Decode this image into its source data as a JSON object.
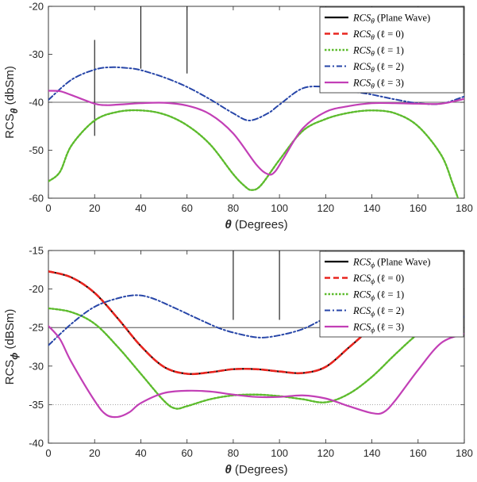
{
  "chart_data": [
    {
      "type": "line",
      "xlabel_symbol": "θ",
      "xlabel_text": " (Degrees)",
      "ylabel_main": "RCS",
      "ylabel_sub": "θ",
      "ylabel_unit": " (dbSm)",
      "xlim": [
        0,
        180
      ],
      "ylim": [
        -60,
        -20
      ],
      "xticks": [
        0,
        20,
        40,
        60,
        80,
        100,
        120,
        140,
        160,
        180
      ],
      "yticks": [
        -60,
        -50,
        -40,
        -30,
        -20
      ],
      "colors": {
        "plane": "#000000",
        "l0": "#e8251f",
        "l1": "#5cbb2c",
        "l2": "#2746a8",
        "l3": "#c23fb6"
      },
      "legend_position": "top-right",
      "legend": [
        {
          "key": "plane",
          "symbol": "RCS",
          "sub": "θ",
          "suffix": " (Plane Wave)"
        },
        {
          "key": "l0",
          "symbol": "RCS",
          "sub": "θ",
          "suffix": "    (ℓ = 0)"
        },
        {
          "key": "l1",
          "symbol": "RCS",
          "sub": "θ",
          "suffix": "    (ℓ = 1)"
        },
        {
          "key": "l2",
          "symbol": "RCS",
          "sub": "θ",
          "suffix": "    (ℓ = 2)"
        },
        {
          "key": "l3",
          "symbol": "RCS",
          "sub": "θ",
          "suffix": "    (ℓ = 3)"
        }
      ],
      "reference_lines": [
        {
          "style": "solid",
          "y": -40
        }
      ],
      "vertical_markers": [
        {
          "x": 20,
          "y_from": -47,
          "y_to": -27
        },
        {
          "x": 40,
          "y_from": -33,
          "y_to": -20
        },
        {
          "x": 60,
          "y_from": -34,
          "y_to": -20
        }
      ],
      "series": [
        {
          "key": "l1",
          "x": [
            0,
            5,
            10,
            20,
            30,
            40,
            50,
            60,
            70,
            80,
            85,
            88,
            92,
            100,
            110,
            120,
            130,
            140,
            150,
            160,
            170,
            175,
            178
          ],
          "y": [
            -56.5,
            -54.5,
            -49,
            -43.8,
            -42,
            -41.7,
            -42.5,
            -44.8,
            -48.8,
            -55,
            -57.5,
            -58.3,
            -57.3,
            -52,
            -46,
            -43.5,
            -42.2,
            -41.7,
            -42.3,
            -45,
            -51,
            -57,
            -61
          ]
        },
        {
          "key": "l2",
          "x": [
            0,
            10,
            20,
            27,
            35,
            40,
            50,
            60,
            70,
            80,
            87,
            95,
            100,
            110,
            120,
            130,
            140,
            150,
            160,
            170,
            180
          ],
          "y": [
            -39.5,
            -35.3,
            -33.2,
            -32.7,
            -32.9,
            -33.3,
            -34.8,
            -36.8,
            -39.4,
            -42.3,
            -43.8,
            -42.3,
            -40.5,
            -37.1,
            -36.8,
            -37.6,
            -38.4,
            -39.4,
            -40.2,
            -40.3,
            -38.8
          ]
        },
        {
          "key": "l3",
          "x": [
            0,
            5,
            10,
            20,
            25,
            30,
            40,
            50,
            60,
            70,
            80,
            90,
            95,
            98,
            102,
            110,
            120,
            130,
            140,
            150,
            160,
            170,
            180
          ],
          "y": [
            -37.6,
            -37.7,
            -38.5,
            -40.3,
            -40.6,
            -40.5,
            -40.2,
            -40.1,
            -40.7,
            -42.5,
            -46.5,
            -53,
            -55,
            -54.5,
            -51.5,
            -45.5,
            -42,
            -40.8,
            -40.2,
            -40.2,
            -40.3,
            -40.3,
            -39.3
          ]
        }
      ]
    },
    {
      "type": "line",
      "xlabel_symbol": "θ",
      "xlabel_text": " (Degrees)",
      "ylabel_main": "RCS",
      "ylabel_sub": "ϕ",
      "ylabel_unit": " (dBSm)",
      "xlim": [
        0,
        180
      ],
      "ylim": [
        -40,
        -15
      ],
      "xticks": [
        0,
        20,
        40,
        60,
        80,
        100,
        120,
        140,
        160,
        180
      ],
      "yticks": [
        -40,
        -35,
        -30,
        -25,
        -20,
        -15
      ],
      "colors": {
        "plane": "#000000",
        "l0": "#e8251f",
        "l1": "#5cbb2c",
        "l2": "#2746a8",
        "l3": "#c23fb6"
      },
      "legend_position": "top-right",
      "legend": [
        {
          "key": "plane",
          "symbol": "RCS",
          "sub": "ϕ",
          "suffix": " (Plane Wave)"
        },
        {
          "key": "l0",
          "symbol": "RCS",
          "sub": "ϕ",
          "suffix": "    (ℓ = 0)"
        },
        {
          "key": "l1",
          "symbol": "RCS",
          "sub": "ϕ",
          "suffix": "    (ℓ = 1)"
        },
        {
          "key": "l2",
          "symbol": "RCS",
          "sub": "ϕ",
          "suffix": "    (ℓ = 2)"
        },
        {
          "key": "l3",
          "symbol": "RCS",
          "sub": "ϕ",
          "suffix": "    (ℓ = 3)"
        }
      ],
      "reference_lines": [
        {
          "style": "solid",
          "y": -25
        },
        {
          "style": "dotted",
          "y": -35
        }
      ],
      "vertical_markers": [
        {
          "x": 80,
          "y_from": -24,
          "y_to": -15
        },
        {
          "x": 100,
          "y_from": -24,
          "y_to": -15
        }
      ],
      "series": [
        {
          "key": "plane",
          "x": [
            0,
            10,
            20,
            30,
            40,
            50,
            60,
            70,
            80,
            90,
            100,
            110,
            120,
            130,
            140,
            145
          ],
          "y": [
            -17.7,
            -18.5,
            -20.5,
            -23.8,
            -27.4,
            -30.1,
            -31.0,
            -30.8,
            -30.4,
            -30.4,
            -30.7,
            -30.9,
            -30.1,
            -27.6,
            -25,
            -24
          ]
        },
        {
          "key": "l0",
          "x": [
            0,
            10,
            20,
            30,
            40,
            50,
            60,
            70,
            80,
            90,
            100,
            110,
            120,
            130,
            140,
            145
          ],
          "y": [
            -17.7,
            -18.5,
            -20.5,
            -23.8,
            -27.4,
            -30.1,
            -31.0,
            -30.8,
            -30.4,
            -30.4,
            -30.7,
            -30.9,
            -30.1,
            -27.6,
            -25,
            -24
          ]
        },
        {
          "key": "l1",
          "x": [
            0,
            10,
            20,
            30,
            40,
            50,
            55,
            60,
            70,
            80,
            90,
            100,
            110,
            120,
            130,
            140,
            150,
            160,
            170,
            178
          ],
          "y": [
            -22.5,
            -23.0,
            -24.5,
            -27.5,
            -31.0,
            -34.5,
            -35.5,
            -35.2,
            -34.3,
            -33.8,
            -33.7,
            -33.9,
            -34.3,
            -34.7,
            -33.6,
            -31.4,
            -28.5,
            -25.8,
            -23.8,
            -23.3
          ]
        },
        {
          "key": "l2",
          "x": [
            0,
            10,
            20,
            30,
            38,
            45,
            55,
            65,
            75,
            85,
            92,
            100,
            110,
            120,
            130,
            140,
            150,
            160,
            170,
            180
          ],
          "y": [
            -27.3,
            -24.5,
            -22.3,
            -21.2,
            -20.8,
            -21.2,
            -22.5,
            -23.9,
            -25.2,
            -26.0,
            -26.3,
            -26.0,
            -25.2,
            -23.8,
            -23.0,
            -23.0,
            -23.3,
            -23.6,
            -23.8,
            -23.6
          ]
        },
        {
          "key": "l3",
          "x": [
            0,
            5,
            10,
            20,
            25,
            30,
            35,
            40,
            50,
            60,
            70,
            80,
            90,
            100,
            110,
            120,
            130,
            140,
            145,
            150,
            160,
            170,
            180
          ],
          "y": [
            -24.8,
            -26.5,
            -29.5,
            -34.5,
            -36.3,
            -36.6,
            -36.0,
            -34.8,
            -33.5,
            -33.2,
            -33.3,
            -33.7,
            -34.0,
            -34.0,
            -33.8,
            -34.2,
            -35.2,
            -36.1,
            -36.0,
            -34.5,
            -30.5,
            -27.0,
            -25.8
          ]
        }
      ]
    }
  ]
}
